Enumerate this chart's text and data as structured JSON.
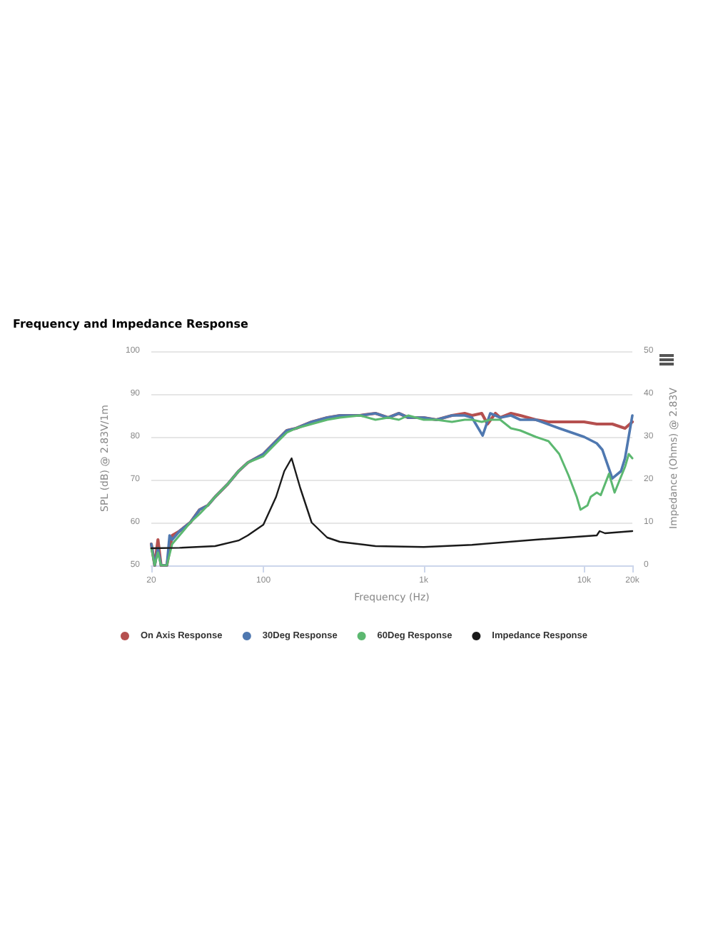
{
  "chart_data": {
    "type": "line",
    "title": "Frequency and Impedance Response",
    "xlabel": "Frequency (Hz)",
    "ylabel": "SPL (dB) @ 2.83V/1m",
    "y2label": "Impedance (Ohms) @ 2.83V",
    "log": "x",
    "grid": "y",
    "legend": "bottom",
    "marker": "none",
    "line_style": "solid",
    "xlim": [
      20,
      20000
    ],
    "xticks": [
      20,
      100,
      {
        "value": 1000,
        "label": "1k"
      },
      {
        "value": 10000,
        "label": "10k"
      },
      {
        "value": 20000,
        "label": "20k"
      }
    ],
    "ylim": [
      50,
      100
    ],
    "yticks": [
      50,
      60,
      70,
      80,
      90,
      100
    ],
    "y2lim": [
      0,
      50
    ],
    "y2ticks": [
      0,
      10,
      20,
      30,
      40,
      50
    ],
    "series": [
      {
        "name": "On Axis Response",
        "color": "#b5504f",
        "x": [
          20,
          21,
          22,
          23,
          25,
          27,
          30,
          35,
          40,
          45,
          50,
          60,
          70,
          80,
          100,
          120,
          140,
          160,
          200,
          250,
          300,
          400,
          500,
          600,
          700,
          800,
          1000,
          1200,
          1500,
          1800,
          2000,
          2300,
          2500,
          2800,
          3000,
          3500,
          4000,
          5000,
          6000,
          8000,
          10000,
          12000,
          15000,
          18000,
          20000
        ],
        "values": [
          55,
          50,
          56,
          50,
          50,
          57,
          58,
          60,
          63,
          64,
          66,
          69,
          72,
          74,
          76,
          79,
          81.5,
          82,
          83.5,
          84.5,
          85,
          85,
          85.5,
          84.5,
          85.5,
          84.5,
          84.5,
          84,
          85,
          85.5,
          85,
          85.5,
          83,
          85.5,
          84.5,
          85.5,
          85,
          84,
          83.5,
          83.5,
          83.5,
          83,
          83,
          82,
          83.5
        ]
      },
      {
        "name": "30Deg Response",
        "color": "#4f78b0",
        "x": [
          20,
          21,
          22,
          23,
          25,
          26,
          27,
          30,
          35,
          40,
          45,
          50,
          60,
          70,
          80,
          100,
          120,
          140,
          160,
          200,
          250,
          300,
          400,
          500,
          600,
          700,
          800,
          1000,
          1200,
          1500,
          1800,
          2000,
          2330,
          2600,
          3000,
          3500,
          4000,
          5000,
          7000,
          10000,
          12000,
          13000,
          15000,
          17000,
          18000,
          20000
        ],
        "values": [
          55,
          50,
          54,
          50,
          50,
          57,
          56,
          58,
          60,
          63,
          64,
          66,
          69,
          72,
          74,
          76,
          79,
          81.5,
          82,
          83.5,
          84.5,
          85,
          85,
          85.5,
          84.5,
          85.5,
          84.5,
          84.5,
          84,
          85,
          85,
          84.5,
          80.3,
          85.5,
          84.5,
          85,
          84,
          84,
          82,
          80,
          78.5,
          77,
          70.3,
          72,
          75,
          85
        ]
      },
      {
        "name": "60Deg Response",
        "color": "#5cb870",
        "x": [
          20,
          21,
          22,
          23,
          25,
          27,
          30,
          35,
          40,
          45,
          50,
          60,
          70,
          80,
          100,
          120,
          140,
          160,
          200,
          250,
          300,
          400,
          500,
          600,
          700,
          800,
          1000,
          1200,
          1500,
          1800,
          2000,
          2300,
          2600,
          3000,
          3500,
          4000,
          5000,
          6000,
          7000,
          8000,
          9000,
          9500,
          10500,
          11000,
          12000,
          12700,
          14300,
          15500,
          18000,
          19000,
          20000
        ],
        "values": [
          54,
          50,
          53,
          50,
          50,
          55,
          57,
          60,
          62,
          64,
          66,
          69,
          72,
          74,
          75.5,
          78.5,
          81,
          82,
          83,
          84,
          84.5,
          85,
          84,
          84.5,
          84,
          85,
          84,
          84,
          83.5,
          84,
          84,
          83.5,
          84,
          84,
          82,
          81.5,
          80,
          79,
          76,
          71,
          66,
          63,
          64,
          66,
          67,
          66.4,
          71.4,
          67,
          73,
          76,
          75
        ]
      },
      {
        "name": "Impedance Response",
        "color": "#1a1a1a",
        "axis": "y2",
        "x": [
          20,
          30,
          50,
          70,
          80,
          100,
          120,
          135,
          150,
          170,
          200,
          250,
          300,
          500,
          1000,
          2000,
          5000,
          10000,
          12000,
          12500,
          13500,
          20000
        ],
        "values": [
          4,
          4.1,
          4.5,
          5.8,
          7,
          9.5,
          16,
          22,
          25,
          18,
          10,
          6.5,
          5.5,
          4.5,
          4.3,
          4.8,
          6,
          6.8,
          7,
          8,
          7.5,
          8
        ]
      }
    ]
  }
}
